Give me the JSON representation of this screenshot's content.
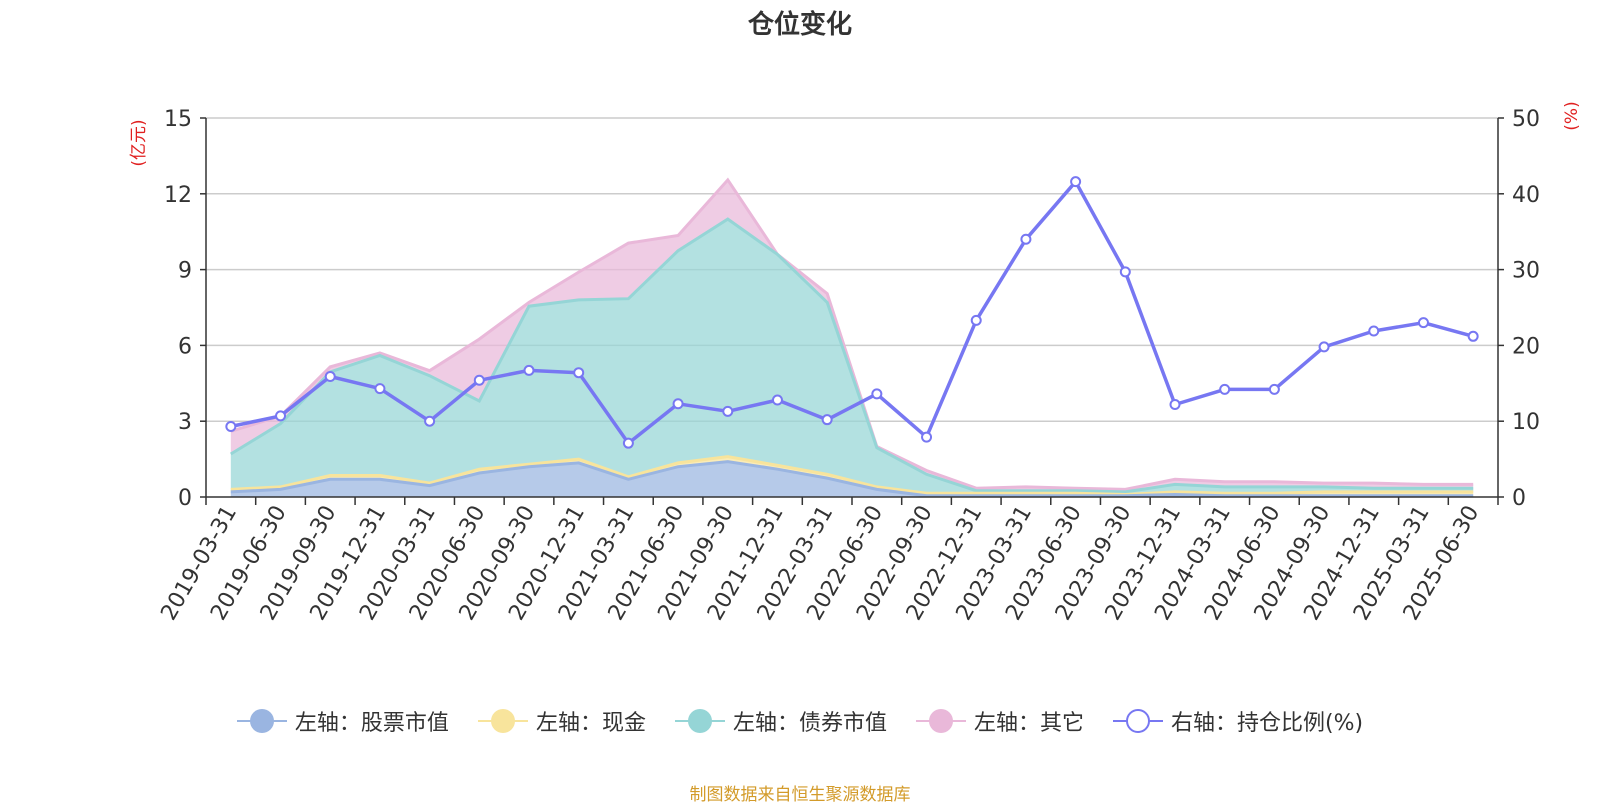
{
  "title": "仓位变化",
  "footer": "制图数据来自恒生聚源数据库",
  "chart_data": {
    "type": "area",
    "title": "仓位变化",
    "x": [
      "2019-03-31",
      "2019-06-30",
      "2019-09-30",
      "2019-12-31",
      "2020-03-31",
      "2020-06-30",
      "2020-09-30",
      "2020-12-31",
      "2021-03-31",
      "2021-06-30",
      "2021-09-30",
      "2021-12-31",
      "2022-03-31",
      "2022-06-30",
      "2022-09-30",
      "2022-12-31",
      "2023-03-31",
      "2023-06-30",
      "2023-09-30",
      "2023-12-31",
      "2024-03-31",
      "2024-06-30",
      "2024-09-30",
      "2024-12-31",
      "2025-03-31",
      "2025-06-30"
    ],
    "left_axis": {
      "label": "(亿元)",
      "ylim": [
        0,
        15
      ],
      "ticks": [
        0,
        3,
        6,
        9,
        12,
        15
      ]
    },
    "right_axis": {
      "label": "(%)",
      "ylim": [
        0,
        50
      ],
      "ticks": [
        0,
        10,
        20,
        30,
        40,
        50
      ]
    },
    "stacked": true,
    "grid": true,
    "legend_position": "bottom",
    "series": [
      {
        "name": "左轴：股票市值",
        "axis": "left",
        "kind": "stacked-area",
        "color": "#9ab5e1",
        "values": [
          0.2,
          0.3,
          0.7,
          0.7,
          0.45,
          0.95,
          1.2,
          1.35,
          0.7,
          1.2,
          1.4,
          1.1,
          0.75,
          0.3,
          0.05,
          0.05,
          0.05,
          0.05,
          0.05,
          0.1,
          0.05,
          0.05,
          0.05,
          0.05,
          0.05,
          0.05
        ]
      },
      {
        "name": "左轴：现金",
        "axis": "left",
        "kind": "stacked-area",
        "color": "#f8e49c",
        "values": [
          0.1,
          0.1,
          0.15,
          0.15,
          0.1,
          0.15,
          0.1,
          0.15,
          0.1,
          0.15,
          0.2,
          0.15,
          0.15,
          0.1,
          0.1,
          0.1,
          0.1,
          0.1,
          0.05,
          0.1,
          0.1,
          0.1,
          0.15,
          0.15,
          0.15,
          0.15
        ]
      },
      {
        "name": "左轴：债券市值",
        "axis": "left",
        "kind": "stacked-area",
        "color": "#95d5d6",
        "values": [
          1.4,
          2.5,
          4.1,
          4.75,
          4.25,
          2.7,
          6.25,
          6.3,
          7.05,
          8.4,
          9.4,
          8.35,
          6.8,
          1.55,
          0.75,
          0.1,
          0.1,
          0.1,
          0.1,
          0.3,
          0.25,
          0.25,
          0.2,
          0.15,
          0.15,
          0.15
        ]
      },
      {
        "name": "左轴：其它",
        "axis": "left",
        "kind": "stacked-area",
        "color": "#e9b8d9",
        "values": [
          0.9,
          0.3,
          0.2,
          0.1,
          0.2,
          2.45,
          0.15,
          1.1,
          2.2,
          0.6,
          1.55,
          0.0,
          0.35,
          0.05,
          0.15,
          0.1,
          0.15,
          0.1,
          0.1,
          0.2,
          0.2,
          0.2,
          0.15,
          0.2,
          0.15,
          0.15
        ]
      },
      {
        "name": "右轴：持仓比例(%)",
        "axis": "right",
        "kind": "line",
        "color": "#7777f2",
        "values": [
          9.3,
          10.7,
          15.9,
          14.3,
          10.0,
          15.4,
          16.7,
          16.4,
          7.1,
          12.3,
          11.3,
          12.8,
          10.2,
          13.6,
          7.9,
          23.3,
          34.0,
          41.6,
          29.7,
          12.2,
          14.2,
          14.2,
          19.8,
          21.9,
          23.0,
          21.2
        ]
      }
    ]
  }
}
